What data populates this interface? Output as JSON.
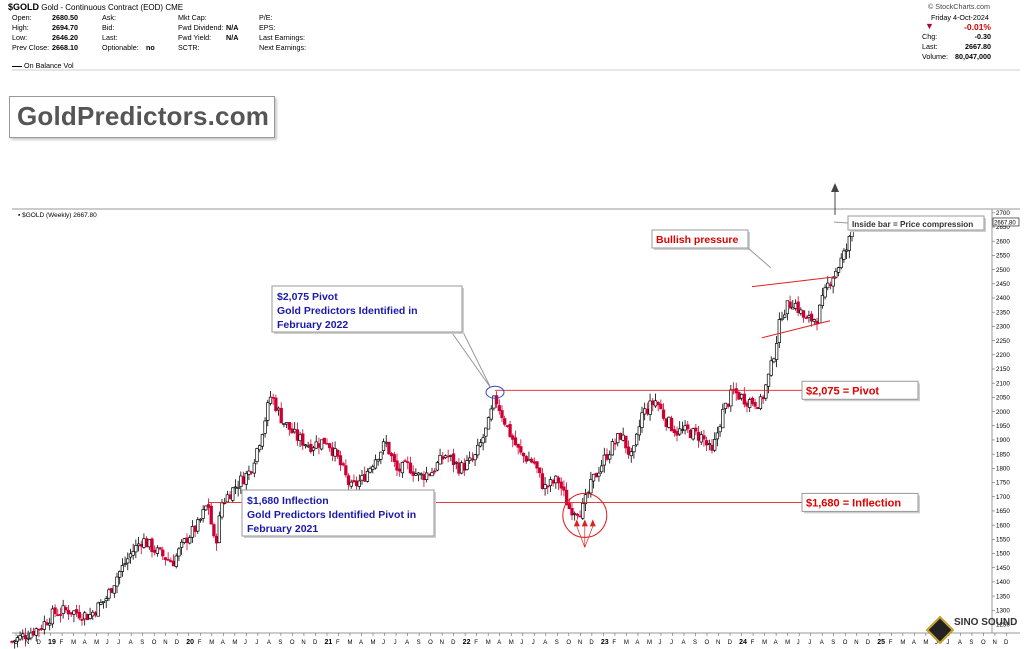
{
  "header": {
    "symbol": "$GOLD",
    "description": "Gold - Continuous Contract (EOD)",
    "exchange": "CME",
    "watermark": "© StockCharts.com",
    "date": "Friday  4-Oct-2024",
    "change_pct": "-0.01%",
    "change_label": "Chg:",
    "change_value": "-0.30",
    "last_label": "Last:",
    "last_value": "2667.80",
    "volume_label": "Volume:",
    "volume_value": "80,047,000",
    "rows": [
      {
        "l": "Open:",
        "v": "2680.50",
        "l2": "Ask:",
        "v2": "",
        "l3": "Mkt Cap:",
        "v3": "",
        "l4": "P/E:",
        "v4": ""
      },
      {
        "l": "High:",
        "v": "2694.70",
        "l2": "Bid:",
        "v2": "",
        "l3": "Fwd Dividend:",
        "v3": "N/A",
        "l4": "EPS:",
        "v4": ""
      },
      {
        "l": "Low:",
        "v": "2646.20",
        "l2": "Last:",
        "v2": "",
        "l3": "Fwd Yield:",
        "v3": "N/A",
        "l4": "Last Earnings:",
        "v4": ""
      },
      {
        "l": "Prev Close:",
        "v": "2668.10",
        "l2": "Optionable:",
        "v2": "no",
        "l3": "SCTR:",
        "v3": "",
        "l4": "Next Earnings:",
        "v4": ""
      }
    ],
    "obv_label": "On Balance Vol"
  },
  "brand": "GoldPredictors.com",
  "chart_data": {
    "type": "candlestick",
    "title": "$GOLD (Weekly) 2667.80",
    "ylim": [
      1220,
      2710
    ],
    "y_ticks": [
      1250,
      1300,
      1350,
      1400,
      1450,
      1500,
      1550,
      1600,
      1650,
      1700,
      1750,
      1800,
      1850,
      1900,
      1950,
      2000,
      2050,
      2100,
      2150,
      2200,
      2250,
      2300,
      2350,
      2400,
      2450,
      2500,
      2550,
      2600,
      2650,
      2700
    ],
    "last_price_tag": "2667.80",
    "x_labels": [
      "O",
      "N",
      "D",
      "19",
      "F",
      "M",
      "A",
      "M",
      "J",
      "J",
      "A",
      "S",
      "O",
      "N",
      "D",
      "20",
      "F",
      "M",
      "A",
      "M",
      "J",
      "J",
      "A",
      "S",
      "O",
      "N",
      "D",
      "21",
      "F",
      "M",
      "A",
      "M",
      "J",
      "J",
      "A",
      "S",
      "O",
      "N",
      "D",
      "22",
      "F",
      "M",
      "A",
      "M",
      "J",
      "J",
      "A",
      "S",
      "O",
      "N",
      "D",
      "23",
      "F",
      "M",
      "A",
      "M",
      "J",
      "J",
      "A",
      "S",
      "O",
      "N",
      "D",
      "24",
      "F",
      "M",
      "A",
      "M",
      "J",
      "J",
      "A",
      "S",
      "O",
      "N",
      "D",
      "25",
      "F",
      "M",
      "A",
      "M",
      "J",
      "J",
      "A",
      "S",
      "O",
      "N",
      "D"
    ],
    "year_labels": [
      "19",
      "20",
      "21",
      "22",
      "23",
      "24",
      "25"
    ],
    "price_path": [
      [
        2018.75,
        1190
      ],
      [
        2018.95,
        1240
      ],
      [
        2019.05,
        1290
      ],
      [
        2019.15,
        1300
      ],
      [
        2019.3,
        1280
      ],
      [
        2019.42,
        1340
      ],
      [
        2019.5,
        1420
      ],
      [
        2019.6,
        1500
      ],
      [
        2019.68,
        1550
      ],
      [
        2019.8,
        1500
      ],
      [
        2019.9,
        1470
      ],
      [
        2020.0,
        1555
      ],
      [
        2020.08,
        1600
      ],
      [
        2020.15,
        1680
      ],
      [
        2020.2,
        1520
      ],
      [
        2020.25,
        1680
      ],
      [
        2020.35,
        1740
      ],
      [
        2020.45,
        1790
      ],
      [
        2020.52,
        1900
      ],
      [
        2020.6,
        2060
      ],
      [
        2020.68,
        1970
      ],
      [
        2020.78,
        1910
      ],
      [
        2020.88,
        1880
      ],
      [
        2021.0,
        1900
      ],
      [
        2021.08,
        1830
      ],
      [
        2021.17,
        1730
      ],
      [
        2021.25,
        1760
      ],
      [
        2021.35,
        1840
      ],
      [
        2021.42,
        1890
      ],
      [
        2021.5,
        1790
      ],
      [
        2021.58,
        1810
      ],
      [
        2021.66,
        1770
      ],
      [
        2021.75,
        1790
      ],
      [
        2021.85,
        1850
      ],
      [
        2021.95,
        1800
      ],
      [
        2022.05,
        1830
      ],
      [
        2022.15,
        1950
      ],
      [
        2022.2,
        2050
      ],
      [
        2022.3,
        1930
      ],
      [
        2022.38,
        1850
      ],
      [
        2022.48,
        1820
      ],
      [
        2022.55,
        1730
      ],
      [
        2022.65,
        1760
      ],
      [
        2022.73,
        1660
      ],
      [
        2022.82,
        1650
      ],
      [
        2022.9,
        1760
      ],
      [
        2023.0,
        1850
      ],
      [
        2023.1,
        1920
      ],
      [
        2023.18,
        1830
      ],
      [
        2023.25,
        1990
      ],
      [
        2023.35,
        2040
      ],
      [
        2023.42,
        1970
      ],
      [
        2023.5,
        1930
      ],
      [
        2023.58,
        1930
      ],
      [
        2023.68,
        1910
      ],
      [
        2023.75,
        1850
      ],
      [
        2023.82,
        1990
      ],
      [
        2023.9,
        2070
      ],
      [
        2024.0,
        2040
      ],
      [
        2024.1,
        2030
      ],
      [
        2024.17,
        2150
      ],
      [
        2024.25,
        2350
      ],
      [
        2024.33,
        2390
      ],
      [
        2024.42,
        2320
      ],
      [
        2024.5,
        2330
      ],
      [
        2024.58,
        2450
      ],
      [
        2024.66,
        2520
      ],
      [
        2024.72,
        2580
      ],
      [
        2024.76,
        2667.8
      ]
    ],
    "annotations": {
      "pivot_level": 2075,
      "inflection_level": 1680,
      "pivot_label": "$2,075 = Pivot",
      "inflection_label": "$1,680 = Inflection",
      "pivot_callout": [
        "$2,075 Pivot",
        "Gold Predictors Identified in",
        "February 2022"
      ],
      "inflection_callout": [
        "$1,680 Inflection",
        "Gold Predictors Identified Pivot in",
        "February 2021"
      ],
      "bullish_label": "Bullish pressure",
      "inside_bar_label": "Inside bar = Price compression"
    },
    "colors": {
      "up": "#000000",
      "down": "#cc0033",
      "level": "#e02020",
      "label": "#e00000",
      "callout": "#1a1aaa"
    }
  },
  "logo_text": "SINO SOUND"
}
